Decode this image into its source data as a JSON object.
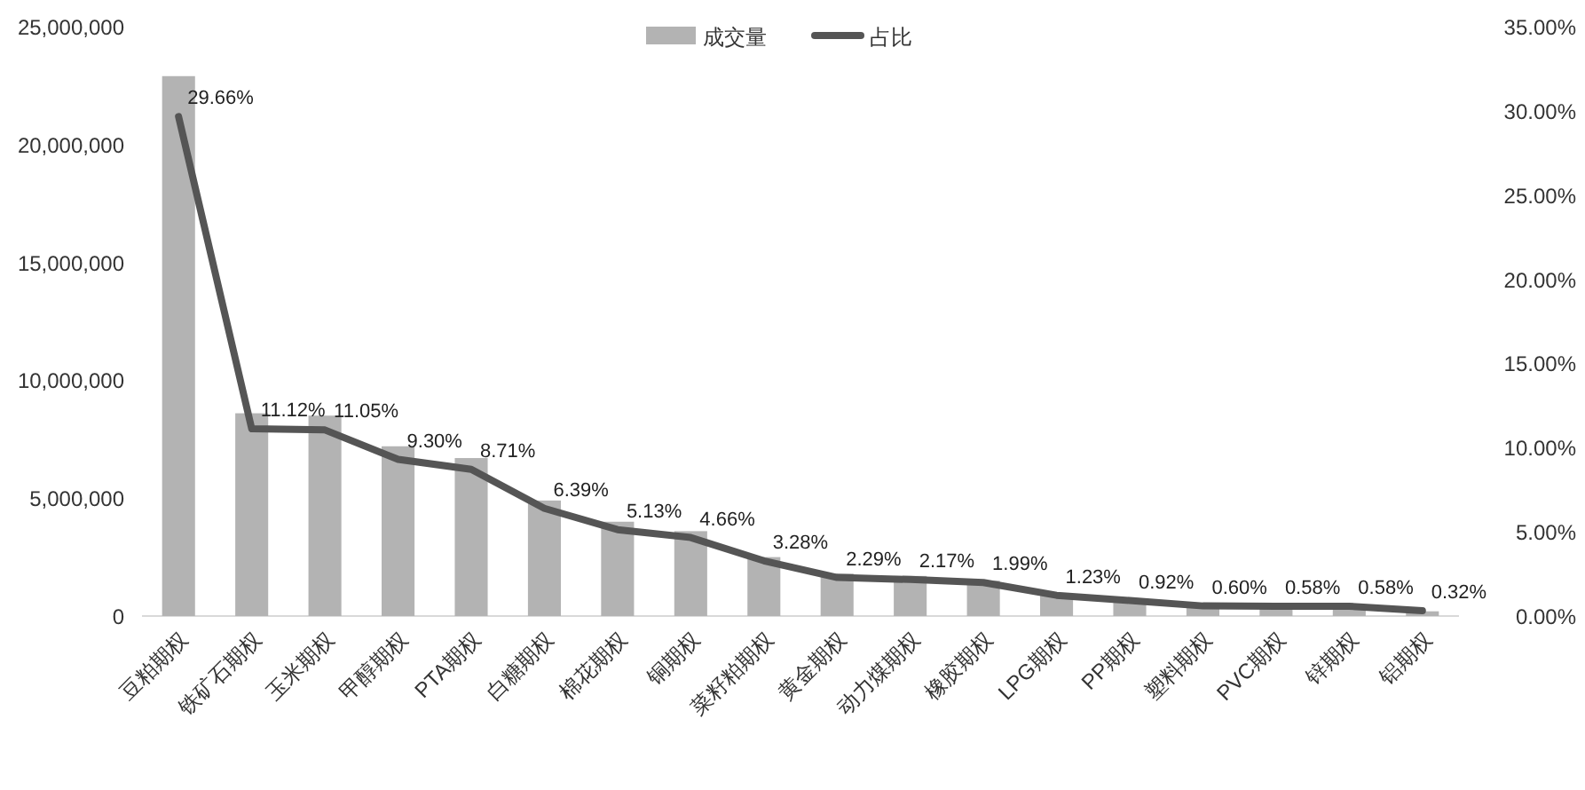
{
  "chart_data": {
    "type": "bar",
    "categories": [
      "豆粕期权",
      "铁矿石期权",
      "玉米期权",
      "甲醇期权",
      "PTA期权",
      "白糖期权",
      "棉花期权",
      "铜期权",
      "菜籽粕期权",
      "黄金期权",
      "动力煤期权",
      "橡胶期权",
      "LPG期权",
      "PP期权",
      "塑料期权",
      "PVC期权",
      "锌期权",
      "铝期权"
    ],
    "series": [
      {
        "name": "成交量",
        "color": "#b3b3b3",
        "values": [
          22900000,
          8600000,
          8500000,
          7200000,
          6700000,
          4900000,
          4000000,
          3600000,
          2500000,
          1800000,
          1700000,
          1500000,
          900000,
          700000,
          500000,
          400000,
          400000,
          200000
        ]
      },
      {
        "name": "占比",
        "type": "line",
        "axis": "y2",
        "color": "#555555",
        "values": [
          29.66,
          11.12,
          11.05,
          9.3,
          8.71,
          6.39,
          5.13,
          4.66,
          3.28,
          2.29,
          2.17,
          1.99,
          1.23,
          0.92,
          0.6,
          0.58,
          0.58,
          0.32
        ],
        "value_labels": [
          "29.66%",
          "11.12%",
          "11.05%",
          "9.30%",
          "8.71%",
          "6.39%",
          "5.13%",
          "4.66%",
          "3.28%",
          "2.29%",
          "2.17%",
          "1.99%",
          "1.23%",
          "0.92%",
          "0.60%",
          "0.58%",
          "0.58%",
          "0.32%"
        ]
      }
    ],
    "ylim": [
      0,
      25000000
    ],
    "yticks": [
      {
        "value": 0,
        "label": "0"
      },
      {
        "value": 5000000,
        "label": "5,000,000"
      },
      {
        "value": 10000000,
        "label": "10,000,000"
      },
      {
        "value": 15000000,
        "label": "15,000,000"
      },
      {
        "value": 20000000,
        "label": "20,000,000"
      },
      {
        "value": 25000000,
        "label": "25,000,000"
      }
    ],
    "y2lim": [
      0,
      35
    ],
    "y2ticks": [
      {
        "value": 0,
        "label": "0.00%"
      },
      {
        "value": 5,
        "label": "5.00%"
      },
      {
        "value": 10,
        "label": "10.00%"
      },
      {
        "value": 15,
        "label": "15.00%"
      },
      {
        "value": 20,
        "label": "20.00%"
      },
      {
        "value": 25,
        "label": "25.00%"
      },
      {
        "value": 30,
        "label": "30.00%"
      },
      {
        "value": 35,
        "label": "35.00%"
      }
    ],
    "legend": "top"
  }
}
